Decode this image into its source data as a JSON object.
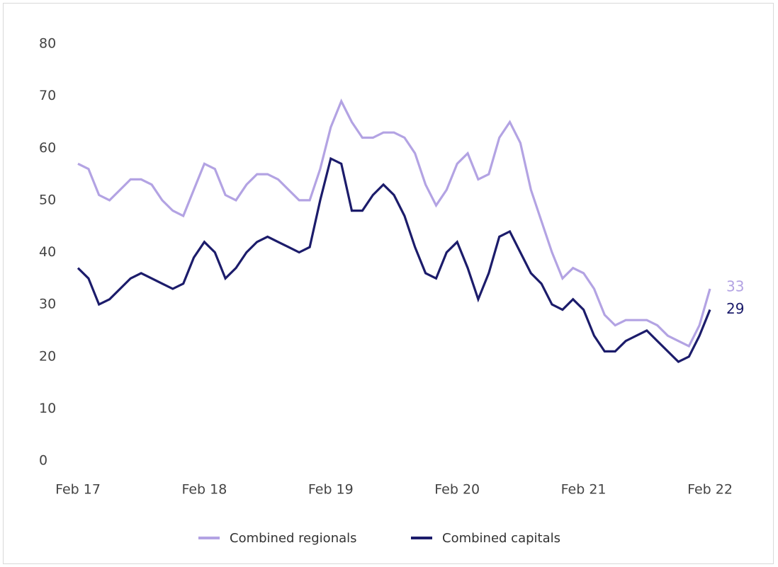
{
  "chart_data": {
    "type": "line",
    "ylim": [
      0,
      80
    ],
    "y_ticks": [
      "0",
      "10",
      "20",
      "30",
      "40",
      "50",
      "60",
      "70",
      "80"
    ],
    "x_ticks": [
      "Feb 17",
      "Feb 18",
      "Feb 19",
      "Feb 20",
      "Feb 21",
      "Feb 22"
    ],
    "grid": false,
    "legend_position": "bottom-center",
    "series": [
      {
        "name": "Combined regionals",
        "color": "#b3a3e3",
        "end_label": "33",
        "values": [
          57,
          56,
          51,
          50,
          52,
          54,
          54,
          53,
          50,
          48,
          47,
          52,
          57,
          56,
          51,
          50,
          53,
          55,
          55,
          54,
          52,
          50,
          50,
          56,
          64,
          69,
          65,
          62,
          62,
          63,
          63,
          62,
          59,
          53,
          49,
          52,
          57,
          59,
          54,
          55,
          62,
          65,
          61,
          52,
          46,
          40,
          35,
          37,
          36,
          33,
          28,
          26,
          27,
          27,
          27,
          26,
          24,
          23,
          22,
          26,
          33
        ]
      },
      {
        "name": "Combined capitals",
        "color": "#1c1c6b",
        "end_label": "29",
        "values": [
          37,
          35,
          30,
          31,
          33,
          35,
          36,
          35,
          34,
          33,
          34,
          39,
          42,
          40,
          35,
          37,
          40,
          42,
          43,
          42,
          41,
          40,
          41,
          50,
          58,
          57,
          48,
          48,
          51,
          53,
          51,
          47,
          41,
          36,
          35,
          40,
          42,
          37,
          31,
          36,
          43,
          44,
          40,
          36,
          34,
          30,
          29,
          31,
          29,
          24,
          21,
          21,
          23,
          24,
          25,
          23,
          21,
          19,
          20,
          24,
          29
        ]
      }
    ]
  }
}
